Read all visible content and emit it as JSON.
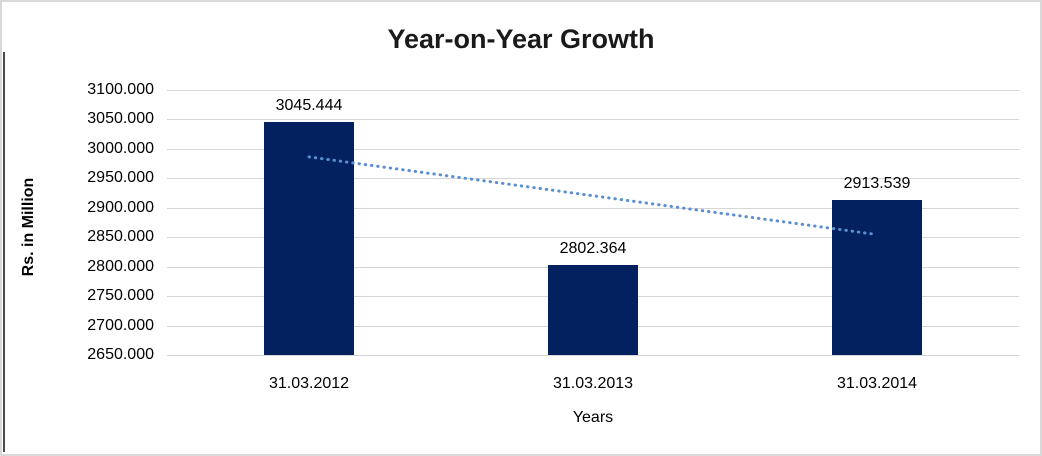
{
  "chart_data": {
    "type": "bar",
    "title": "Year-on-Year Growth",
    "categories": [
      "31.03.2012",
      "31.03.2013",
      "31.03.2014"
    ],
    "values": [
      3045.444,
      2802.364,
      2913.539
    ],
    "data_labels": [
      "3045.444",
      "2802.364",
      "2913.539"
    ],
    "xlabel": "Years",
    "ylabel": "Rs. in Million",
    "ylim": [
      2650,
      3100
    ],
    "ytick_step": 50,
    "ytick_labels": [
      "3100.000",
      "3050.000",
      "3000.000",
      "2950.000",
      "2900.000",
      "2850.000",
      "2800.000",
      "2750.000",
      "2700.000",
      "2650.000"
    ],
    "grid": true,
    "legend_position": "none",
    "bar_color": "#02215e",
    "gridline_color": "#d6d6d6",
    "trendline": {
      "style": "dotted",
      "color": "#5b8fd0",
      "start_value": 2986.4,
      "end_value": 2854.5
    }
  }
}
